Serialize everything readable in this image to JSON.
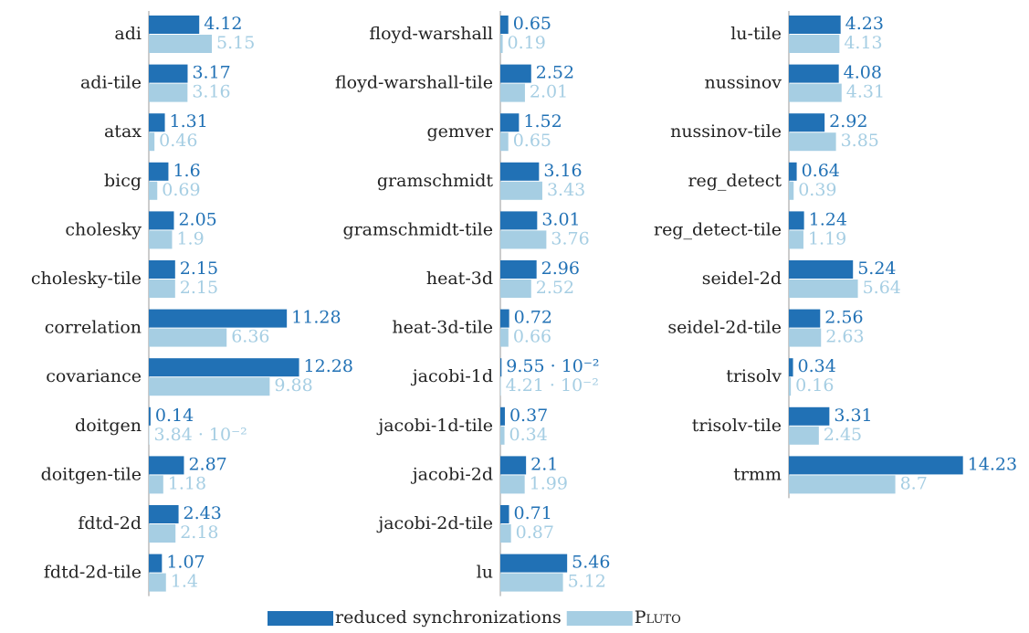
{
  "chart_data": [
    {
      "type": "bar",
      "orientation": "horizontal",
      "xlim": [
        0,
        15
      ],
      "categories": [
        "adi",
        "adi-tile",
        "atax",
        "bicg",
        "cholesky",
        "cholesky-tile",
        "correlation",
        "covariance",
        "doitgen",
        "doitgen-tile",
        "fdtd-2d",
        "fdtd-2d-tile"
      ],
      "series": [
        {
          "values": [
            4.12,
            3.17,
            1.31,
            1.6,
            2.05,
            2.15,
            11.28,
            12.28,
            0.14,
            2.87,
            2.43,
            1.07
          ],
          "value_labels": [
            "4.12",
            "3.17",
            "1.31",
            "1.6",
            "2.05",
            "2.15",
            "11.28",
            "12.28",
            "0.14",
            "2.87",
            "2.43",
            "1.07"
          ]
        },
        {
          "values": [
            5.15,
            3.16,
            0.46,
            0.69,
            1.9,
            2.15,
            6.36,
            9.88,
            0.0384,
            1.18,
            2.18,
            1.4
          ],
          "value_labels": [
            "5.15",
            "3.16",
            "0.46",
            "0.69",
            "1.9",
            "2.15",
            "6.36",
            "9.88",
            "3.84 · 10⁻²",
            "1.18",
            "2.18",
            "1.4"
          ]
        }
      ]
    },
    {
      "type": "bar",
      "orientation": "horizontal",
      "xlim": [
        0,
        15
      ],
      "categories": [
        "floyd-warshall",
        "floyd-warshall-tile",
        "gemver",
        "gramschmidt",
        "gramschmidt-tile",
        "heat-3d",
        "heat-3d-tile",
        "jacobi-1d",
        "jacobi-1d-tile",
        "jacobi-2d",
        "jacobi-2d-tile",
        "lu"
      ],
      "series": [
        {
          "values": [
            0.65,
            2.52,
            1.52,
            3.16,
            3.01,
            2.96,
            0.72,
            0.0955,
            0.37,
            2.1,
            0.71,
            5.46
          ],
          "value_labels": [
            "0.65",
            "2.52",
            "1.52",
            "3.16",
            "3.01",
            "2.96",
            "0.72",
            "9.55 · 10⁻²",
            "0.37",
            "2.1",
            "0.71",
            "5.46"
          ]
        },
        {
          "values": [
            0.19,
            2.01,
            0.65,
            3.43,
            3.76,
            2.52,
            0.66,
            0.0421,
            0.34,
            1.99,
            0.87,
            5.12
          ],
          "value_labels": [
            "0.19",
            "2.01",
            "0.65",
            "3.43",
            "3.76",
            "2.52",
            "0.66",
            "4.21 · 10⁻²",
            "0.34",
            "1.99",
            "0.87",
            "5.12"
          ]
        }
      ]
    },
    {
      "type": "bar",
      "orientation": "horizontal",
      "xlim": [
        0,
        15
      ],
      "categories": [
        "lu-tile",
        "nussinov",
        "nussinov-tile",
        "reg_detect",
        "reg_detect-tile",
        "seidel-2d",
        "seidel-2d-tile",
        "trisolv",
        "trisolv-tile",
        "trmm"
      ],
      "series": [
        {
          "values": [
            4.23,
            4.08,
            2.92,
            0.64,
            1.24,
            5.24,
            2.56,
            0.34,
            3.31,
            14.23
          ],
          "value_labels": [
            "4.23",
            "4.08",
            "2.92",
            "0.64",
            "1.24",
            "5.24",
            "2.56",
            "0.34",
            "3.31",
            "14.23"
          ]
        },
        {
          "values": [
            4.13,
            4.31,
            3.85,
            0.39,
            1.19,
            5.64,
            2.63,
            0.16,
            2.45,
            8.7
          ],
          "value_labels": [
            "4.13",
            "4.31",
            "3.85",
            "0.39",
            "1.19",
            "5.64",
            "2.63",
            "0.16",
            "2.45",
            "8.7"
          ]
        }
      ]
    }
  ],
  "legend": [
    {
      "name": "reduced synchronizations",
      "color": "#2171b5"
    },
    {
      "name": "Pluto",
      "color": "#a6cee3"
    }
  ]
}
